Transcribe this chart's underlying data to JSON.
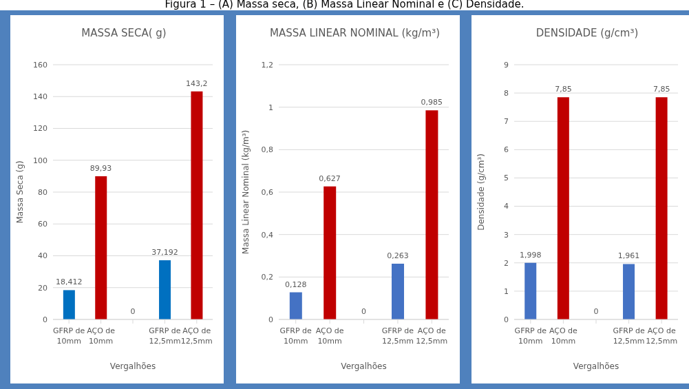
{
  "chart_data": [
    {
      "type": "bar",
      "title": "MASSA SECA( g)",
      "annotations": [
        "Figura 1 – (A) Massa seca, (B) Massa Linear Nominal e (C) Densidade."
      ],
      "xlabel": "Vergalhões",
      "ylabel": "Massa Seca (g)",
      "categories": [
        "GFRP de 10mm",
        "AÇO de 10mm",
        null,
        "GFRP de 12,5mm",
        "AÇO de 12,5mm"
      ],
      "values": [
        18.412,
        89.93,
        0,
        37.192,
        143.2
      ],
      "colors": [
        "#0070c0",
        "#c00000",
        "#0070c0",
        "#0070c0",
        "#c00000"
      ],
      "value_labels": [
        "18,412",
        "89,93",
        "0",
        "37,192",
        "143,2"
      ],
      "ylim": [
        0,
        160
      ],
      "yticks": [
        0,
        20,
        40,
        60,
        80,
        100,
        120,
        140,
        160
      ],
      "grid": "y"
    },
    {
      "type": "bar",
      "title": "MASSA LINEAR NOMINAL (kg/m³)",
      "xlabel": "Vergalhões",
      "ylabel": "Massa Linear Nominal (kg/m³)",
      "categories": [
        "GFRP de 10mm",
        "AÇO de 10mm",
        null,
        "GFRP de 12,5mm",
        "AÇO de 12,5mm"
      ],
      "values": [
        0.128,
        0.627,
        0,
        0.263,
        0.985
      ],
      "colors": [
        "#4472c4",
        "#c00000",
        "#4472c4",
        "#4472c4",
        "#c00000"
      ],
      "value_labels": [
        "0,128",
        "0,627",
        "0",
        "0,263",
        "0,985"
      ],
      "ylim": [
        0,
        1.2
      ],
      "yticks": [
        0,
        {
          "value": 0.2,
          "label": "0,2"
        },
        {
          "value": 0.4,
          "label": "0,4"
        },
        {
          "value": 0.6,
          "label": "0,6"
        },
        {
          "value": 0.8,
          "label": "0,8"
        },
        1,
        {
          "value": 1.2,
          "label": "1,2"
        }
      ],
      "grid": "y"
    },
    {
      "type": "bar",
      "title": "DENSIDADE (g/cm³)",
      "xlabel": "Vergalhões",
      "ylabel": "Densidade (g/cm³)",
      "categories": [
        "GFRP de 10mm",
        "AÇO de 10mm",
        null,
        "GFRP de 12,5mm",
        "AÇO de 12,5mm"
      ],
      "values": [
        1.998,
        7.85,
        0,
        1.961,
        7.85
      ],
      "colors": [
        "#4472c4",
        "#c00000",
        "#4472c4",
        "#4472c4",
        "#c00000"
      ],
      "value_labels": [
        "1,998",
        "7,85",
        "0",
        "1,961",
        "7,85"
      ],
      "ylim": [
        0,
        9
      ],
      "yticks": [
        0,
        1,
        2,
        3,
        4,
        5,
        6,
        7,
        8,
        9
      ],
      "grid": "y"
    }
  ]
}
